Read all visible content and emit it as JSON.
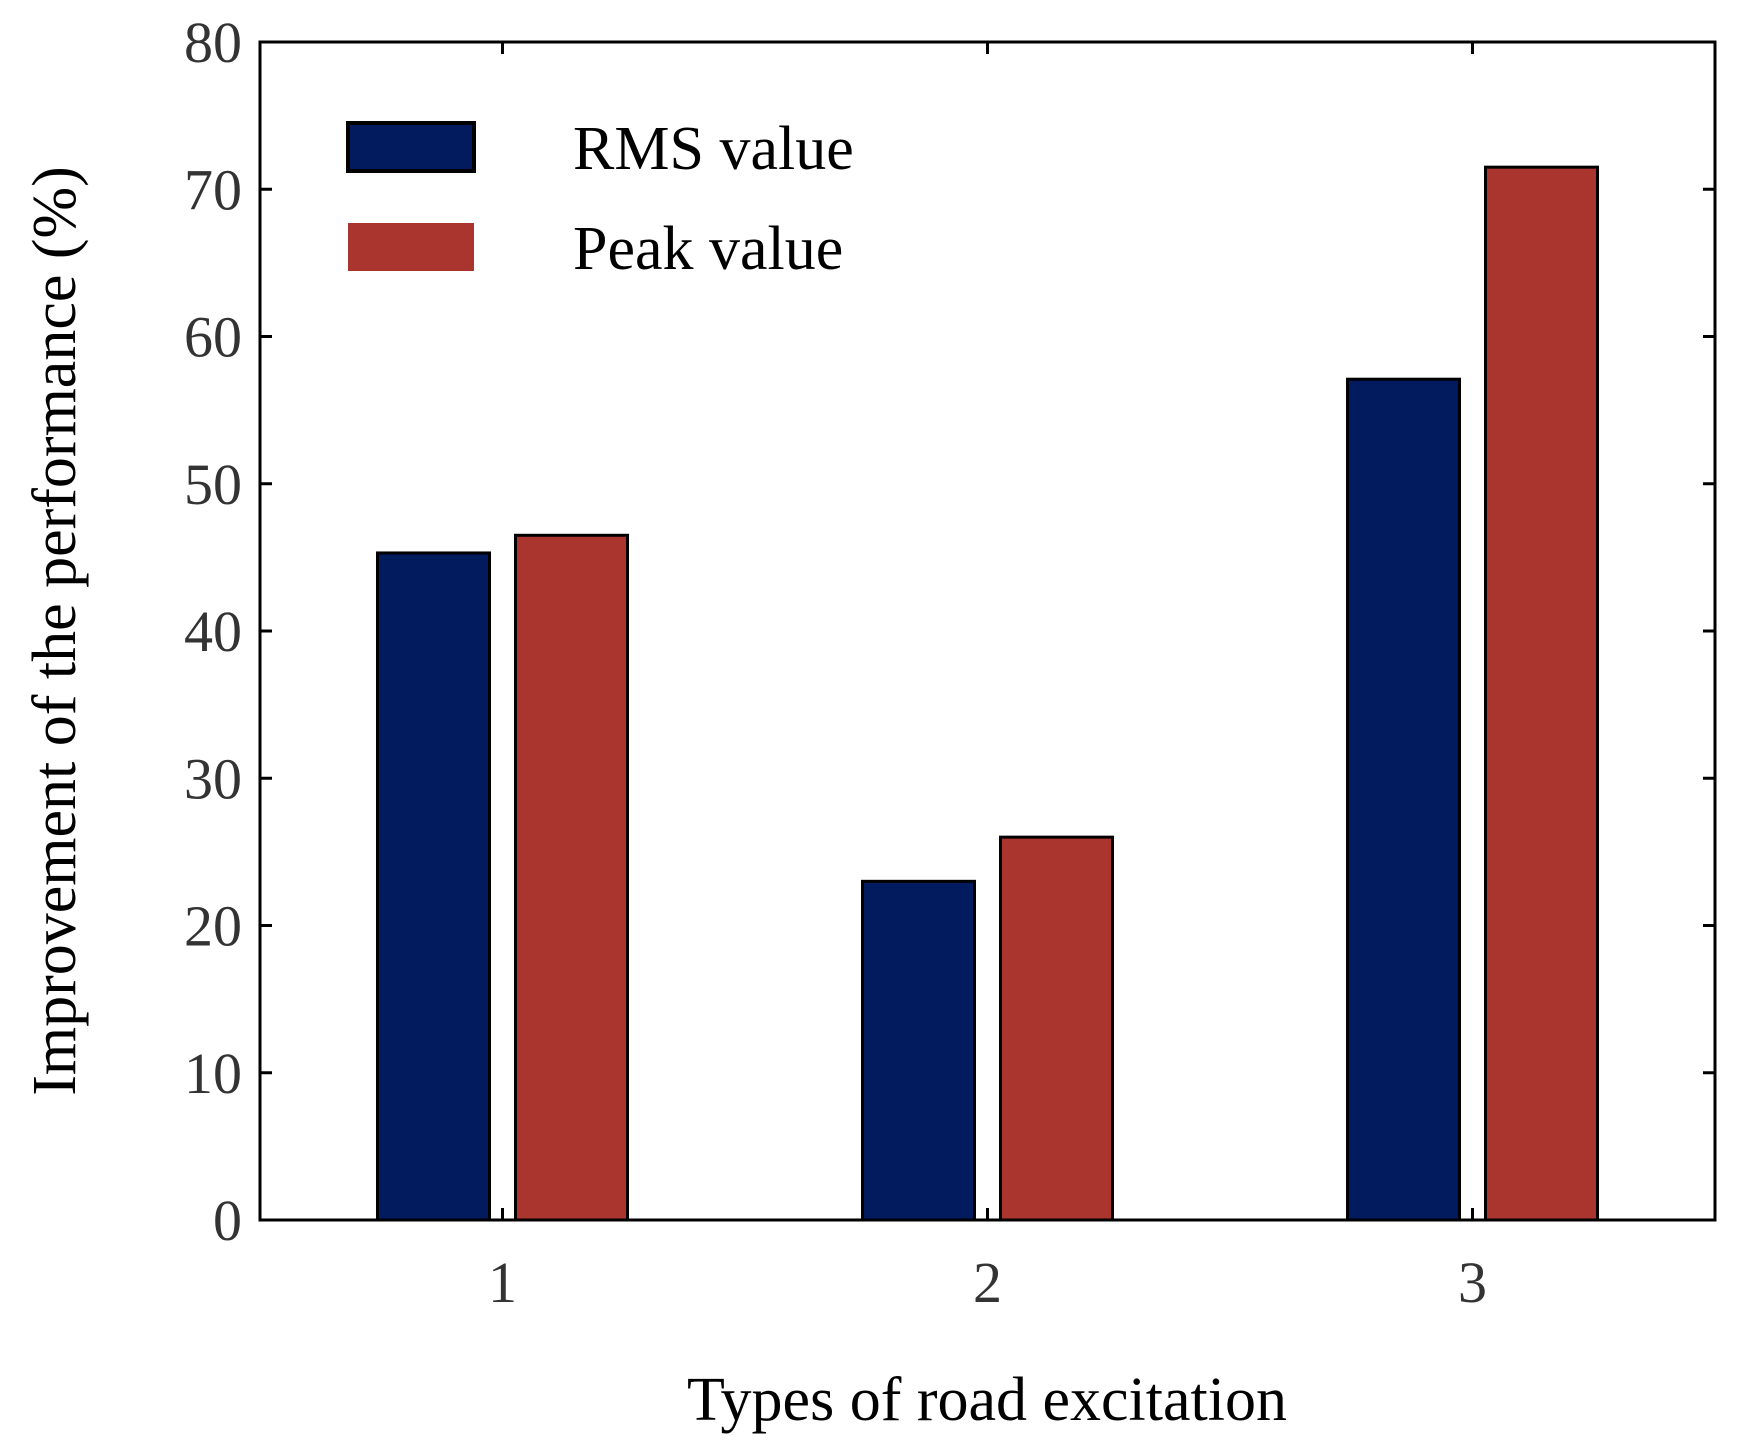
{
  "chart_data": {
    "type": "bar",
    "title": "",
    "xlabel": "Types of road excitation",
    "ylabel": "Improvement of the performance (%)",
    "categories": [
      "1",
      "2",
      "3"
    ],
    "series": [
      {
        "name": "RMS value",
        "color": "#021a5e",
        "values": [
          45.3,
          23.0,
          57.1
        ]
      },
      {
        "name": "Peak value",
        "color": "#a9352e",
        "values": [
          46.5,
          26.0,
          71.5
        ]
      }
    ],
    "ylim": [
      0,
      80
    ],
    "yticks": [
      "0",
      "10",
      "20",
      "30",
      "40",
      "50",
      "60",
      "70",
      "80"
    ],
    "legend_position": "top-left",
    "grid": false
  }
}
